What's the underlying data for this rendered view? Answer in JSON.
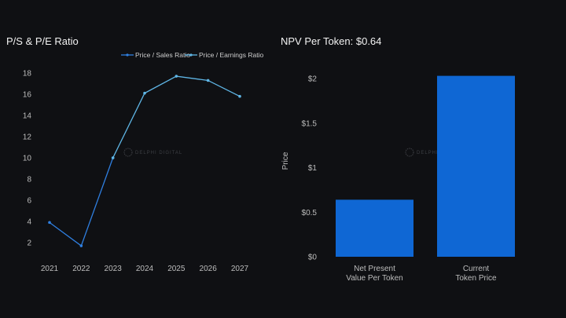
{
  "chart_data": [
    {
      "type": "line",
      "title": "P/S & P/E Ratio",
      "x": [
        "2021",
        "2022",
        "2023",
        "2024",
        "2025",
        "2026",
        "2027"
      ],
      "yticks": [
        2,
        4,
        6,
        8,
        10,
        12,
        14,
        16,
        18
      ],
      "ylim": [
        0,
        18
      ],
      "xlabel": "",
      "ylabel": "",
      "legend_position": "top-right",
      "series": [
        {
          "name": "Price / Sales Ratio",
          "color": "#2f7fe0",
          "values": [
            3.9,
            1.7,
            10.0,
            null,
            null,
            null,
            null
          ]
        },
        {
          "name": "Price / Earnings Ratio",
          "color": "#5fb6e6",
          "values": [
            null,
            null,
            10.0,
            16.1,
            17.7,
            17.3,
            15.8
          ]
        }
      ]
    },
    {
      "type": "bar",
      "title": "NPV Per Token: $0.64",
      "categories": [
        [
          "Net Present",
          "Value Per Token"
        ],
        [
          "Current",
          "Token Price"
        ]
      ],
      "values": [
        0.64,
        2.03
      ],
      "color": "#0f67d4",
      "ylabel": "Price",
      "yticks": [
        "$0",
        "$0.5",
        "$1",
        "$1.5",
        "$2"
      ],
      "ytick_values": [
        0,
        0.5,
        1,
        1.5,
        2
      ],
      "ylim": [
        0,
        2
      ]
    }
  ],
  "watermark": "DELPHI DIGITAL"
}
